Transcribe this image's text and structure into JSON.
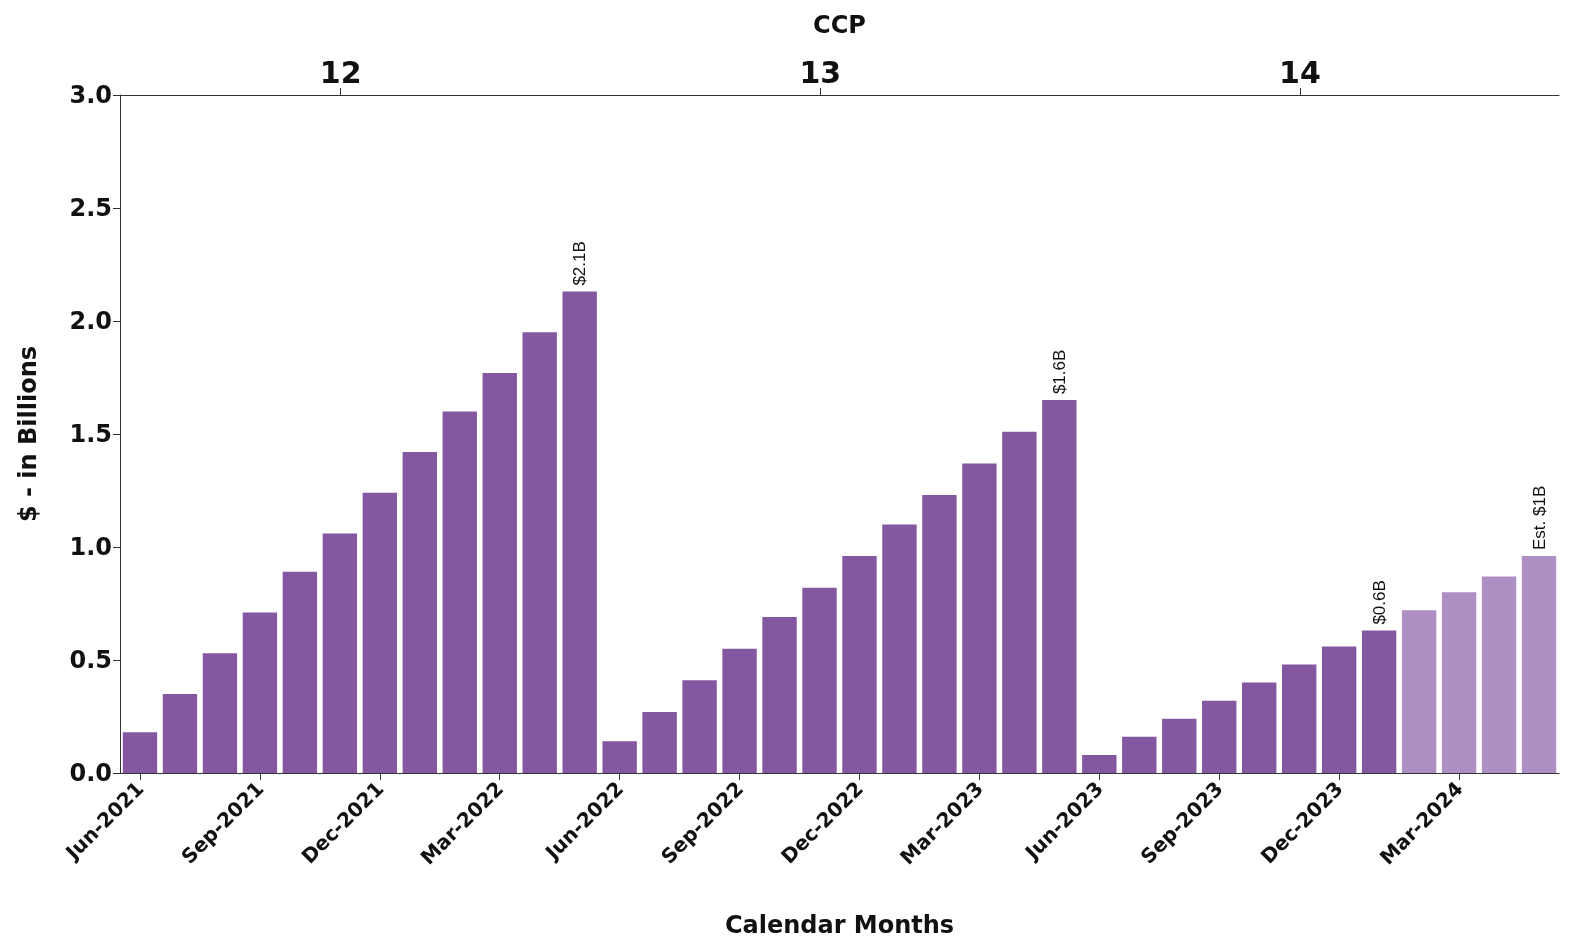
{
  "chart_data": {
    "type": "bar",
    "xlabel": "Calendar Months",
    "ylabel": "$ - in Billions",
    "x2label": "CCP",
    "categories": [
      "Jun-2021",
      null,
      null,
      "Sep-2021",
      null,
      null,
      "Dec-2021",
      null,
      null,
      "Mar-2022",
      null,
      null,
      "Jun-2022",
      null,
      null,
      "Sep-2022",
      null,
      null,
      "Dec-2022",
      null,
      null,
      "Mar-2023",
      null,
      null,
      "Jun-2023",
      null,
      null,
      "Sep-2023",
      null,
      null,
      "Dec-2023",
      null,
      null,
      "Mar-2024",
      null,
      null
    ],
    "values": [
      0.18,
      0.35,
      0.53,
      0.71,
      0.89,
      1.06,
      1.24,
      1.42,
      1.6,
      1.77,
      1.95,
      2.13,
      0.14,
      0.27,
      0.41,
      0.55,
      0.69,
      0.82,
      0.96,
      1.1,
      1.23,
      1.37,
      1.51,
      1.65,
      0.08,
      0.16,
      0.24,
      0.32,
      0.4,
      0.48,
      0.56,
      0.63,
      0.72,
      0.8,
      0.87,
      0.96
    ],
    "colors": [
      "#8457a1",
      "#8457a1",
      "#8457a1",
      "#8457a1",
      "#8457a1",
      "#8457a1",
      "#8457a1",
      "#8457a1",
      "#8457a1",
      "#8457a1",
      "#8457a1",
      "#8457a1",
      "#8457a1",
      "#8457a1",
      "#8457a1",
      "#8457a1",
      "#8457a1",
      "#8457a1",
      "#8457a1",
      "#8457a1",
      "#8457a1",
      "#8457a1",
      "#8457a1",
      "#8457a1",
      "#8457a1",
      "#8457a1",
      "#8457a1",
      "#8457a1",
      "#8457a1",
      "#8457a1",
      "#8457a1",
      "#8457a1",
      "#ae8fc4",
      "#ae8fc4",
      "#ae8fc4",
      "#ae8fc4"
    ],
    "value_labels": [
      null,
      null,
      null,
      null,
      null,
      null,
      null,
      null,
      null,
      null,
      null,
      "$2.1B",
      null,
      null,
      null,
      null,
      null,
      null,
      null,
      null,
      null,
      null,
      null,
      "$1.6B",
      null,
      null,
      null,
      null,
      null,
      null,
      null,
      "$0.6B",
      null,
      null,
      null,
      "Est. $1B"
    ],
    "ylim": [
      0,
      3
    ],
    "yticks": [
      {
        "value": 0,
        "label": "0.0"
      },
      {
        "value": 0.5,
        "label": "0.5"
      },
      {
        "value": 1,
        "label": "1.0"
      },
      {
        "value": 1.5,
        "label": "1.5"
      },
      {
        "value": 2,
        "label": "2.0"
      },
      {
        "value": 2.5,
        "label": "2.5"
      },
      {
        "value": 3,
        "label": "3.0"
      }
    ],
    "x2lim": [
      11.54,
      14.54
    ],
    "x2ticks": [
      12,
      13,
      14
    ],
    "grid": false
  }
}
